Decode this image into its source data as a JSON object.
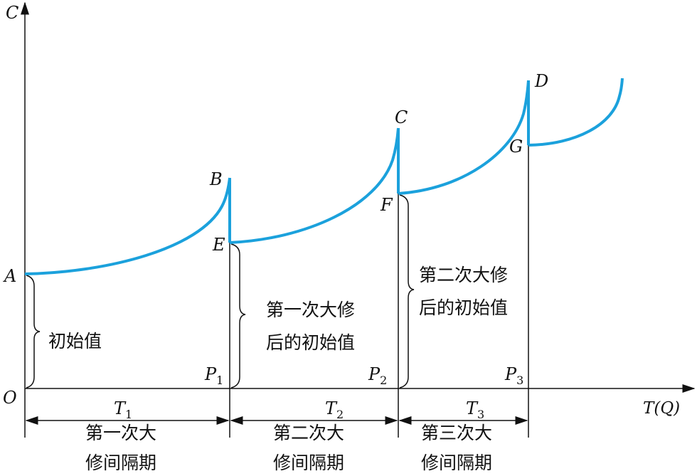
{
  "axes": {
    "y_label": "C",
    "x_label": "T(Q)",
    "origin": "O"
  },
  "points": {
    "A": "A",
    "B": "B",
    "C": "C",
    "D": "D",
    "E": "E",
    "F": "F",
    "G": "G"
  },
  "p_labels": [
    {
      "main": "P",
      "sub": "1"
    },
    {
      "main": "P",
      "sub": "2"
    },
    {
      "main": "P",
      "sub": "3"
    }
  ],
  "t_labels": [
    {
      "main": "T",
      "sub": "1"
    },
    {
      "main": "T",
      "sub": "2"
    },
    {
      "main": "T",
      "sub": "3"
    }
  ],
  "annotations": {
    "initial": "初始值",
    "after_first": [
      "第一次大修",
      "后的初始值"
    ],
    "after_second": [
      "第二次大修",
      "后的初始值"
    ]
  },
  "intervals": [
    [
      "第一次大",
      "修间隔期"
    ],
    [
      "第二次大",
      "修间隔期"
    ],
    [
      "第三次大",
      "修间隔期"
    ]
  ],
  "colors": {
    "curve": "#1ba1dc",
    "axis": "#111111"
  }
}
